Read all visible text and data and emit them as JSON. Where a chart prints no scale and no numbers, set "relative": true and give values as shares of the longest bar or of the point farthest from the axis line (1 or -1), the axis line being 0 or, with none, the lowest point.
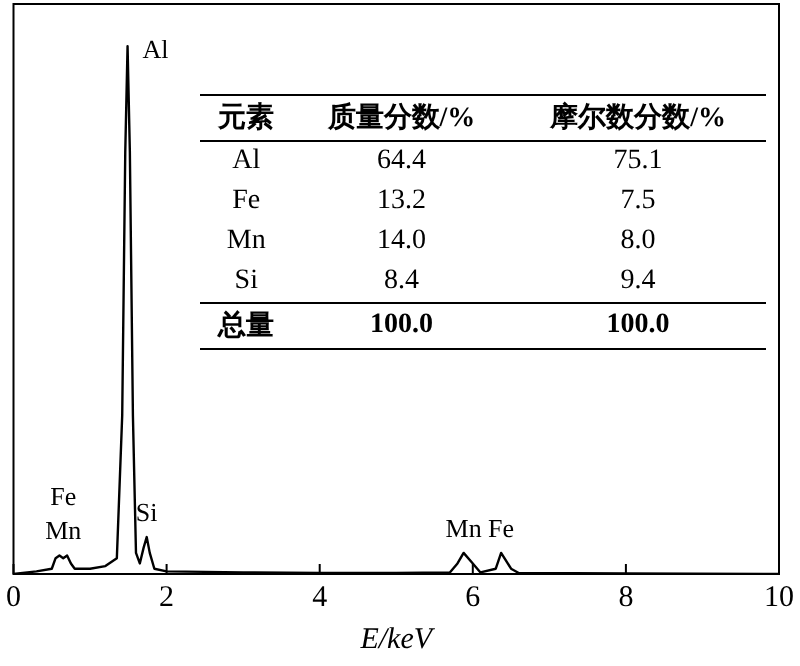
{
  "chart_data": {
    "type": "line",
    "relative": true,
    "xlabel": "E/keV",
    "xlim": [
      0,
      10
    ],
    "xticks": [
      0,
      2,
      4,
      6,
      8,
      10
    ],
    "color": "#000000",
    "grid": false,
    "legend": false,
    "marker": "none",
    "line_style": "solid",
    "x": [
      0,
      0.3,
      0.5,
      0.55,
      0.6,
      0.65,
      0.7,
      0.75,
      0.8,
      1.0,
      1.2,
      1.35,
      1.42,
      1.46,
      1.49,
      1.52,
      1.56,
      1.6,
      1.65,
      1.7,
      1.74,
      1.78,
      1.84,
      2.0,
      3,
      4,
      5,
      5.7,
      5.8,
      5.88,
      6.0,
      6.1,
      6.3,
      6.37,
      6.5,
      6.6,
      8,
      10
    ],
    "values": [
      0,
      0.005,
      0.01,
      0.03,
      0.035,
      0.03,
      0.035,
      0.02,
      0.01,
      0.01,
      0.015,
      0.03,
      0.3,
      0.8,
      1,
      0.8,
      0.3,
      0.04,
      0.02,
      0.05,
      0.07,
      0.04,
      0.01,
      0.005,
      0.003,
      0.002,
      0.002,
      0.003,
      0.02,
      0.04,
      0.02,
      0.003,
      0.01,
      0.04,
      0.01,
      0.002,
      0.001,
      0
    ],
    "annotations": [
      {
        "text": "Al",
        "x": 1.49,
        "y": 1
      },
      {
        "text": "Fe",
        "x": 0.65,
        "y": 0.035
      },
      {
        "text": "Mn",
        "x": 0.65,
        "y": 0.035
      },
      {
        "text": "Si",
        "x": 1.74,
        "y": 0.07
      },
      {
        "text": "Mn",
        "x": 5.88,
        "y": 0.04
      },
      {
        "text": "Fe",
        "x": 6.37,
        "y": 0.04
      },
      "元素",
      "质量分数/%",
      "摩尔数分数/%",
      "Al",
      "64.4",
      "75.1",
      "Fe",
      "13.2",
      "7.5",
      "Mn",
      "14.0",
      "8.0",
      "Si",
      "8.4",
      "9.4",
      "总量",
      "100.0",
      "100.0"
    ]
  }
}
